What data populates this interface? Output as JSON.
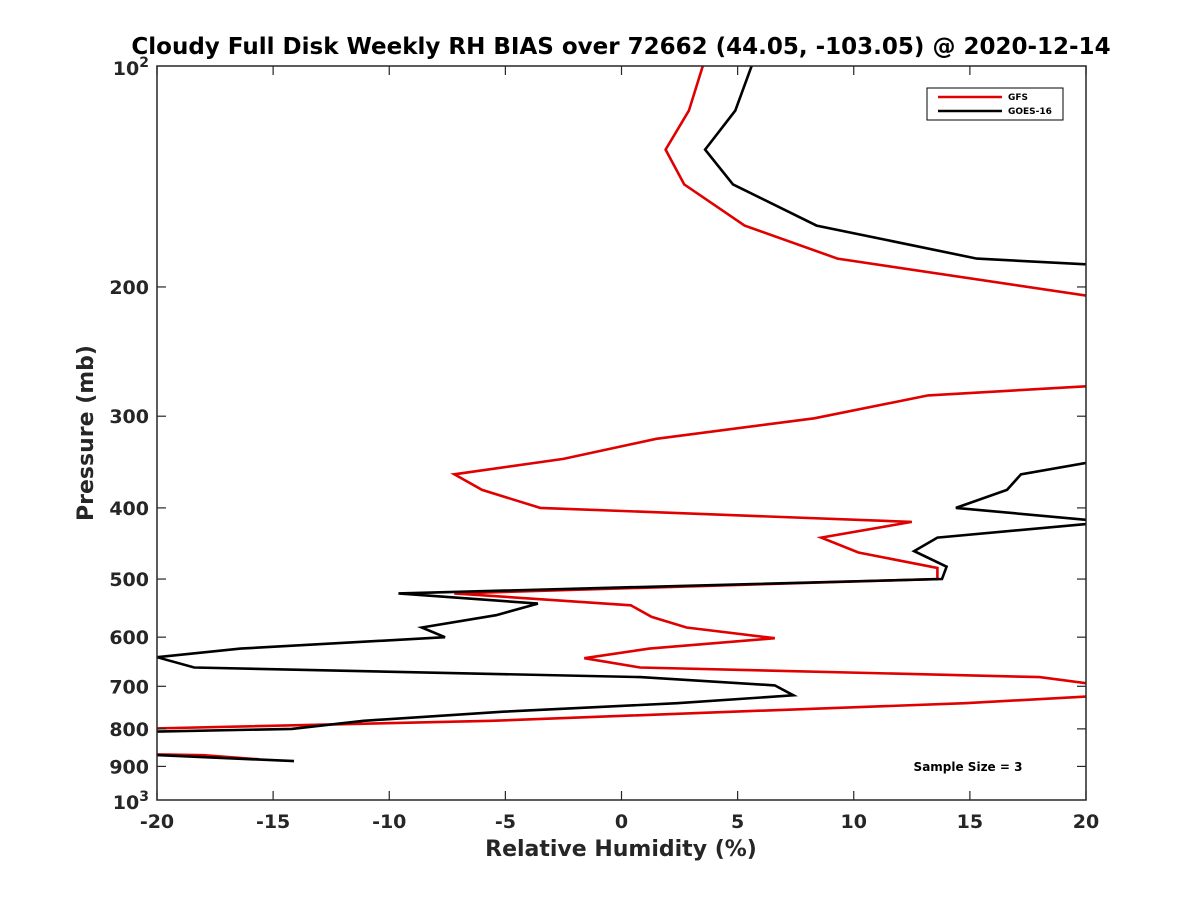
{
  "chart_data": {
    "type": "line",
    "title": "Cloudy Full Disk Weekly RH BIAS over 72662 (44.05, -103.05) @ 2020-12-14",
    "xlabel": "Relative Humidity (%)",
    "ylabel": "Pressure (mb)",
    "xlim": [
      -20,
      20
    ],
    "ylim": [
      100,
      1000
    ],
    "yscale": "log",
    "y_reversed": true,
    "xticks": [
      -20,
      -15,
      -10,
      -5,
      0,
      5,
      10,
      15,
      20
    ],
    "xtick_labels": [
      "-20",
      "-15",
      "-10",
      "-5",
      "0",
      "5",
      "10",
      "15",
      "20"
    ],
    "yticks": [
      200,
      300,
      400,
      500,
      600,
      700,
      800,
      900
    ],
    "ytick_labels": [
      "200",
      "300",
      "400",
      "500",
      "600",
      "700",
      "800",
      "900"
    ],
    "ytick_top": {
      "base": "10",
      "exp": "2"
    },
    "ytick_bottom": {
      "base": "10",
      "exp": "3"
    },
    "grid": false,
    "legend_position": "top-right",
    "annotation": "Sample Size = 3",
    "series": [
      {
        "name": "GFS",
        "color": "#e00000",
        "segments": [
          [
            [
              3.5,
              100
            ],
            [
              2.9,
              115
            ],
            [
              1.9,
              130
            ],
            [
              2.7,
              145
            ],
            [
              5.3,
              165
            ],
            [
              9.3,
              183
            ],
            [
              22,
              210
            ]
          ],
          [
            [
              21,
              272
            ],
            [
              13.2,
              281
            ],
            [
              8.3,
              302
            ],
            [
              1.5,
              322
            ],
            [
              -2.5,
              343
            ],
            [
              -7.2,
              360
            ],
            [
              -6.0,
              378
            ],
            [
              -3.5,
              400
            ],
            [
              12.5,
              418
            ],
            [
              8.6,
              439
            ],
            [
              10.2,
              460
            ],
            [
              13.6,
              483
            ],
            [
              13.6,
              500
            ],
            [
              -7.2,
              523
            ],
            [
              0.4,
              543
            ],
            [
              1.3,
              563
            ],
            [
              2.8,
              582
            ],
            [
              6.6,
              602
            ],
            [
              1.2,
              622
            ],
            [
              -1.6,
              641
            ],
            [
              0.8,
              660
            ],
            [
              18.0,
              680
            ],
            [
              21,
              700
            ]
          ],
          [
            [
              21,
              720
            ],
            [
              14.8,
              738
            ],
            [
              4.8,
              758
            ],
            [
              -5.6,
              780
            ],
            [
              -21,
              800
            ]
          ],
          [
            [
              -21,
              866
            ],
            [
              -18,
              869
            ],
            [
              -15.6,
              880
            ]
          ]
        ]
      },
      {
        "name": "GOES-16",
        "color": "#000000",
        "segments": [
          [
            [
              5.6,
              100
            ],
            [
              4.9,
              115
            ],
            [
              3.6,
              130
            ],
            [
              4.8,
              145
            ],
            [
              8.4,
              165
            ],
            [
              15.3,
              183
            ],
            [
              21,
              187
            ]
          ],
          [
            [
              21,
              343
            ],
            [
              17.2,
              360
            ],
            [
              16.6,
              378
            ],
            [
              14.4,
              400
            ],
            [
              21,
              418
            ],
            [
              13.6,
              439
            ],
            [
              12.6,
              458
            ],
            [
              14.0,
              481
            ],
            [
              13.8,
              500
            ],
            [
              -9.6,
              523
            ],
            [
              -3.6,
              540
            ],
            [
              -5.4,
              560
            ],
            [
              -8.6,
              582
            ],
            [
              -7.6,
              600
            ],
            [
              -16.4,
              622
            ],
            [
              -20,
              639
            ],
            [
              -18.4,
              660
            ],
            [
              0.8,
              680
            ],
            [
              6.6,
              698
            ],
            [
              7.4,
              720
            ],
            [
              2.4,
              738
            ],
            [
              -5.1,
              758
            ],
            [
              -11.1,
              780
            ],
            [
              -14.2,
              800
            ],
            [
              -21,
              808
            ]
          ],
          [
            [
              -21,
              866
            ],
            [
              -14.1,
              885
            ]
          ]
        ]
      }
    ]
  }
}
